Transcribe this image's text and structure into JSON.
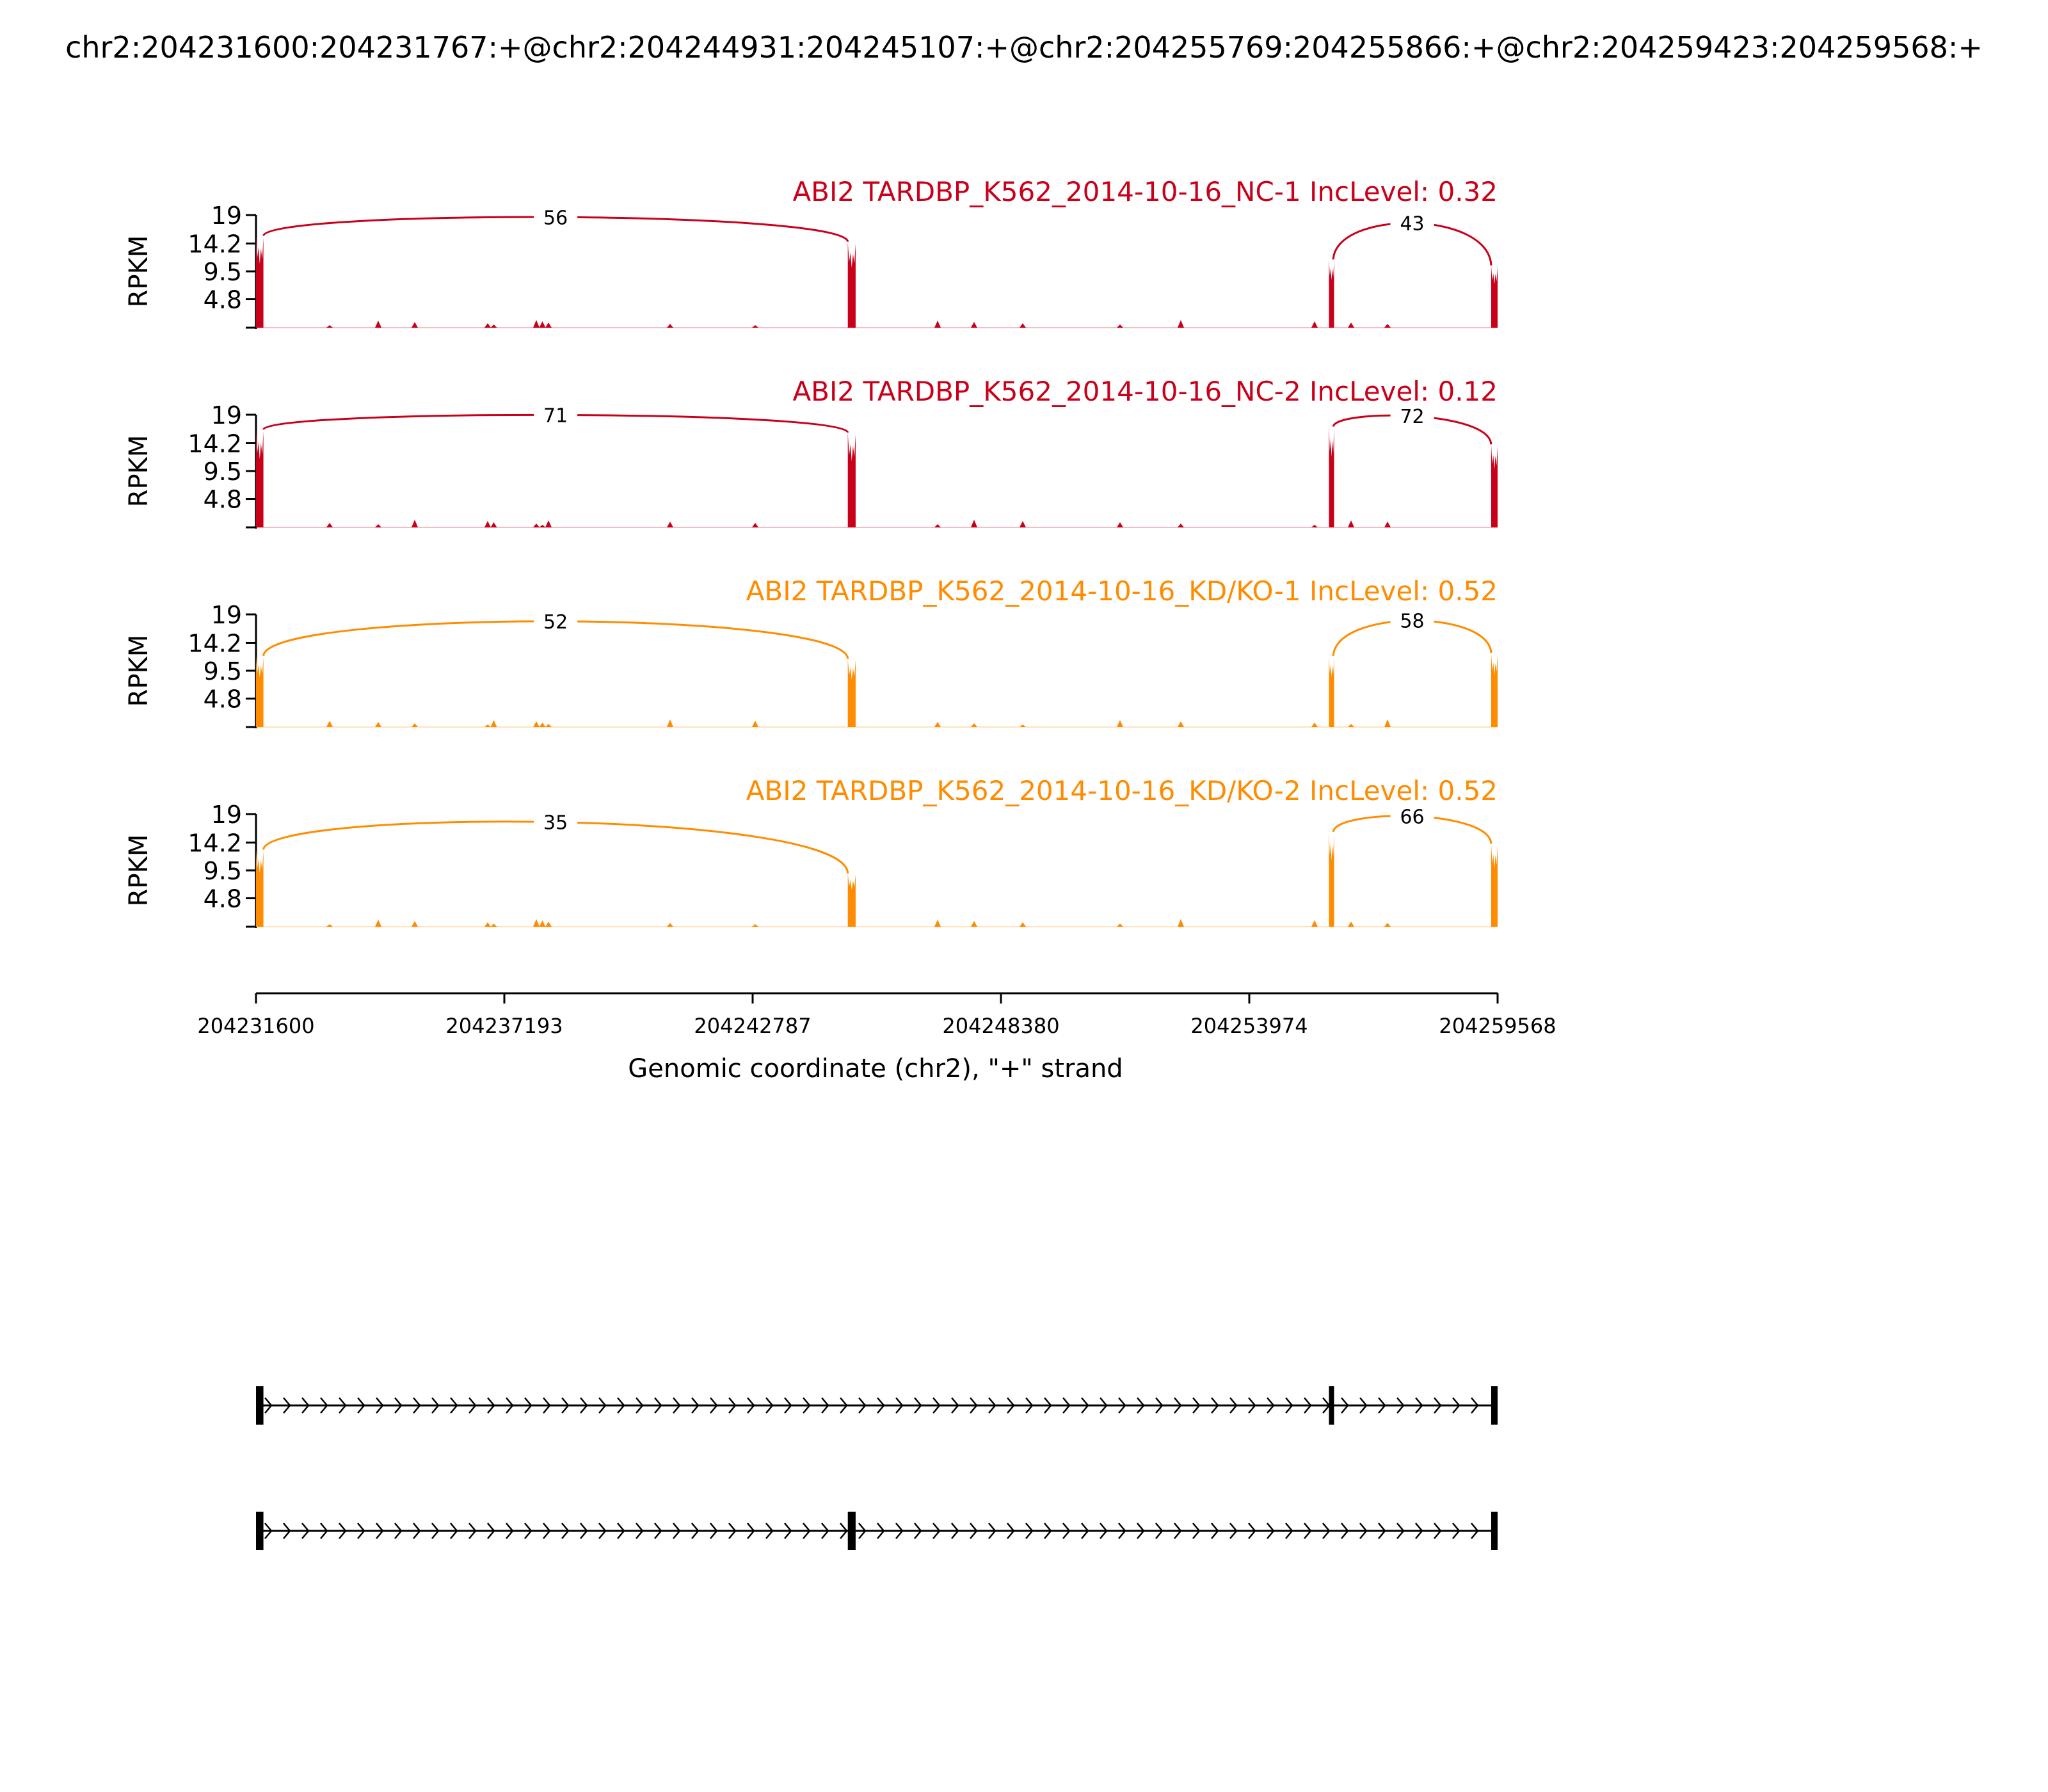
{
  "title": "chr2:204231600:204231767:+@chr2:204244931:204245107:+@chr2:204255769:204255866:+@chr2:204259423:204259568:+",
  "chart_data": {
    "type": "area",
    "xlabel": "Genomic coordinate (chr2), \"+\" strand",
    "ylabel": "RPKM",
    "xlim": [
      204231600,
      204259568
    ],
    "xticks": [
      "204231600",
      "204237193",
      "204242787",
      "204248380",
      "204253974",
      "204259568"
    ],
    "ylim": [
      0,
      19
    ],
    "yticks": [
      "4.8",
      "9.5",
      "14.2",
      "19"
    ],
    "exons": [
      [
        204231600,
        204231767
      ],
      [
        204244931,
        204245107
      ],
      [
        204255769,
        204255866
      ],
      [
        204259423,
        204259568
      ]
    ],
    "colors": {
      "NC": "#c8001a",
      "KD": "#ff8c00"
    },
    "tracks": [
      {
        "label": "ABI2 TARDBP_K562_2014-10-16_NC-1 IncLevel: 0.32",
        "group": "NC",
        "color": "#c8001a",
        "exon_heights": [
          15.5,
          14.5,
          11.5,
          10.5
        ],
        "junctions": [
          {
            "from": 204231767,
            "to": 204244931,
            "count": "56"
          },
          {
            "from": 204255866,
            "to": 204259423,
            "count": "43"
          }
        ]
      },
      {
        "label": "ABI2 TARDBP_K562_2014-10-16_NC-2 IncLevel: 0.12",
        "group": "NC",
        "color": "#c8001a",
        "exon_heights": [
          16.5,
          16.0,
          17.0,
          14.0
        ],
        "junctions": [
          {
            "from": 204231767,
            "to": 204244931,
            "count": "71"
          },
          {
            "from": 204255866,
            "to": 204259423,
            "count": "72"
          }
        ]
      },
      {
        "label": "ABI2 TARDBP_K562_2014-10-16_KD/KO-1 IncLevel: 0.52",
        "group": "KD",
        "color": "#ff8c00",
        "exon_heights": [
          12.0,
          11.5,
          12.0,
          12.5
        ],
        "junctions": [
          {
            "from": 204231767,
            "to": 204244931,
            "count": "52"
          },
          {
            "from": 204255866,
            "to": 204259423,
            "count": "58"
          }
        ]
      },
      {
        "label": "ABI2 TARDBP_K562_2014-10-16_KD/KO-2 IncLevel: 0.52",
        "group": "KD",
        "color": "#ff8c00",
        "exon_heights": [
          13.0,
          9.0,
          16.0,
          14.0
        ],
        "junctions": [
          {
            "from": 204231767,
            "to": 204244931,
            "count": "35"
          },
          {
            "from": 204255866,
            "to": 204259423,
            "count": "66"
          }
        ]
      }
    ],
    "isoforms": [
      {
        "exons": [
          [
            204231600,
            204231767
          ],
          [
            204255769,
            204255866
          ],
          [
            204259423,
            204259568
          ]
        ]
      },
      {
        "exons": [
          [
            204231600,
            204231767
          ],
          [
            204244931,
            204245107
          ],
          [
            204259423,
            204259568
          ]
        ]
      }
    ]
  }
}
